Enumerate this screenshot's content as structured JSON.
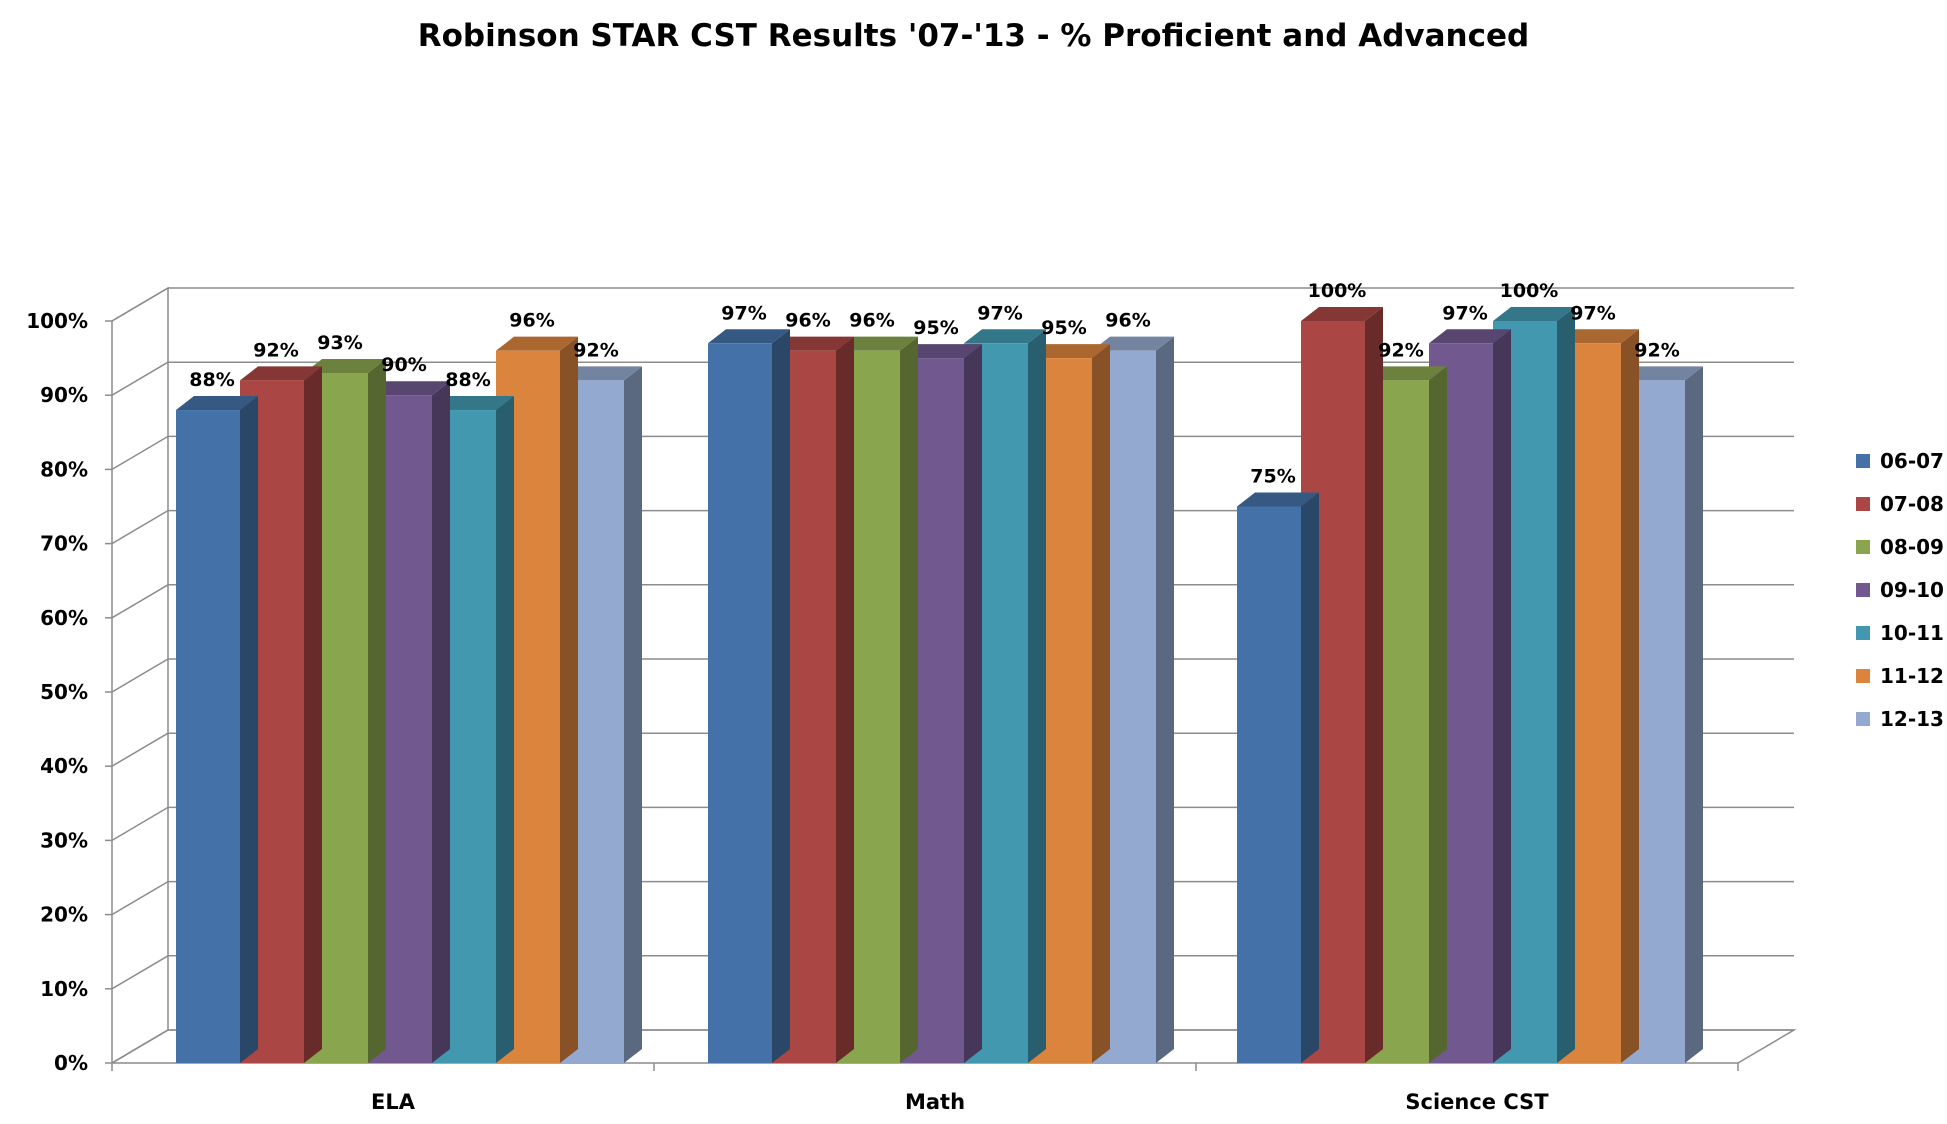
{
  "chart_data": {
    "type": "bar",
    "title": "Robinson STAR CST Results '07-'13 - % Proficient and Advanced",
    "categories": [
      "ELA",
      "Math",
      "Science CST"
    ],
    "series": [
      {
        "name": "06-07",
        "color": "#4472A8",
        "values": [
          88,
          97,
          75
        ]
      },
      {
        "name": "07-08",
        "color": "#AA4644",
        "values": [
          92,
          96,
          100
        ]
      },
      {
        "name": "08-09",
        "color": "#89A54E",
        "values": [
          93,
          96,
          92
        ]
      },
      {
        "name": "09-10",
        "color": "#71588F",
        "values": [
          90,
          95,
          97
        ]
      },
      {
        "name": "10-11",
        "color": "#4198AF",
        "values": [
          88,
          97,
          100
        ]
      },
      {
        "name": "11-12",
        "color": "#DB843D",
        "values": [
          96,
          95,
          97
        ]
      },
      {
        "name": "12-13",
        "color": "#93A9CF",
        "values": [
          92,
          96,
          92
        ]
      }
    ],
    "data_labels": [
      [
        "88%",
        "97%",
        "75%"
      ],
      [
        "92%",
        "96%",
        "100%"
      ],
      [
        "93%",
        "96%",
        "92%"
      ],
      [
        "90%",
        "95%",
        "97%"
      ],
      [
        "88%",
        "97%",
        "100%"
      ],
      [
        "96%",
        "95%",
        "97%"
      ],
      [
        "92%",
        "96%",
        "92%"
      ]
    ],
    "y_ticks": [
      "0%",
      "10%",
      "20%",
      "30%",
      "40%",
      "50%",
      "60%",
      "70%",
      "80%",
      "90%",
      "100%"
    ],
    "ylim": [
      0,
      100
    ],
    "xlabel": "",
    "ylabel": "",
    "grid": true,
    "legend_position": "right",
    "style": "3d-clustered-column"
  }
}
